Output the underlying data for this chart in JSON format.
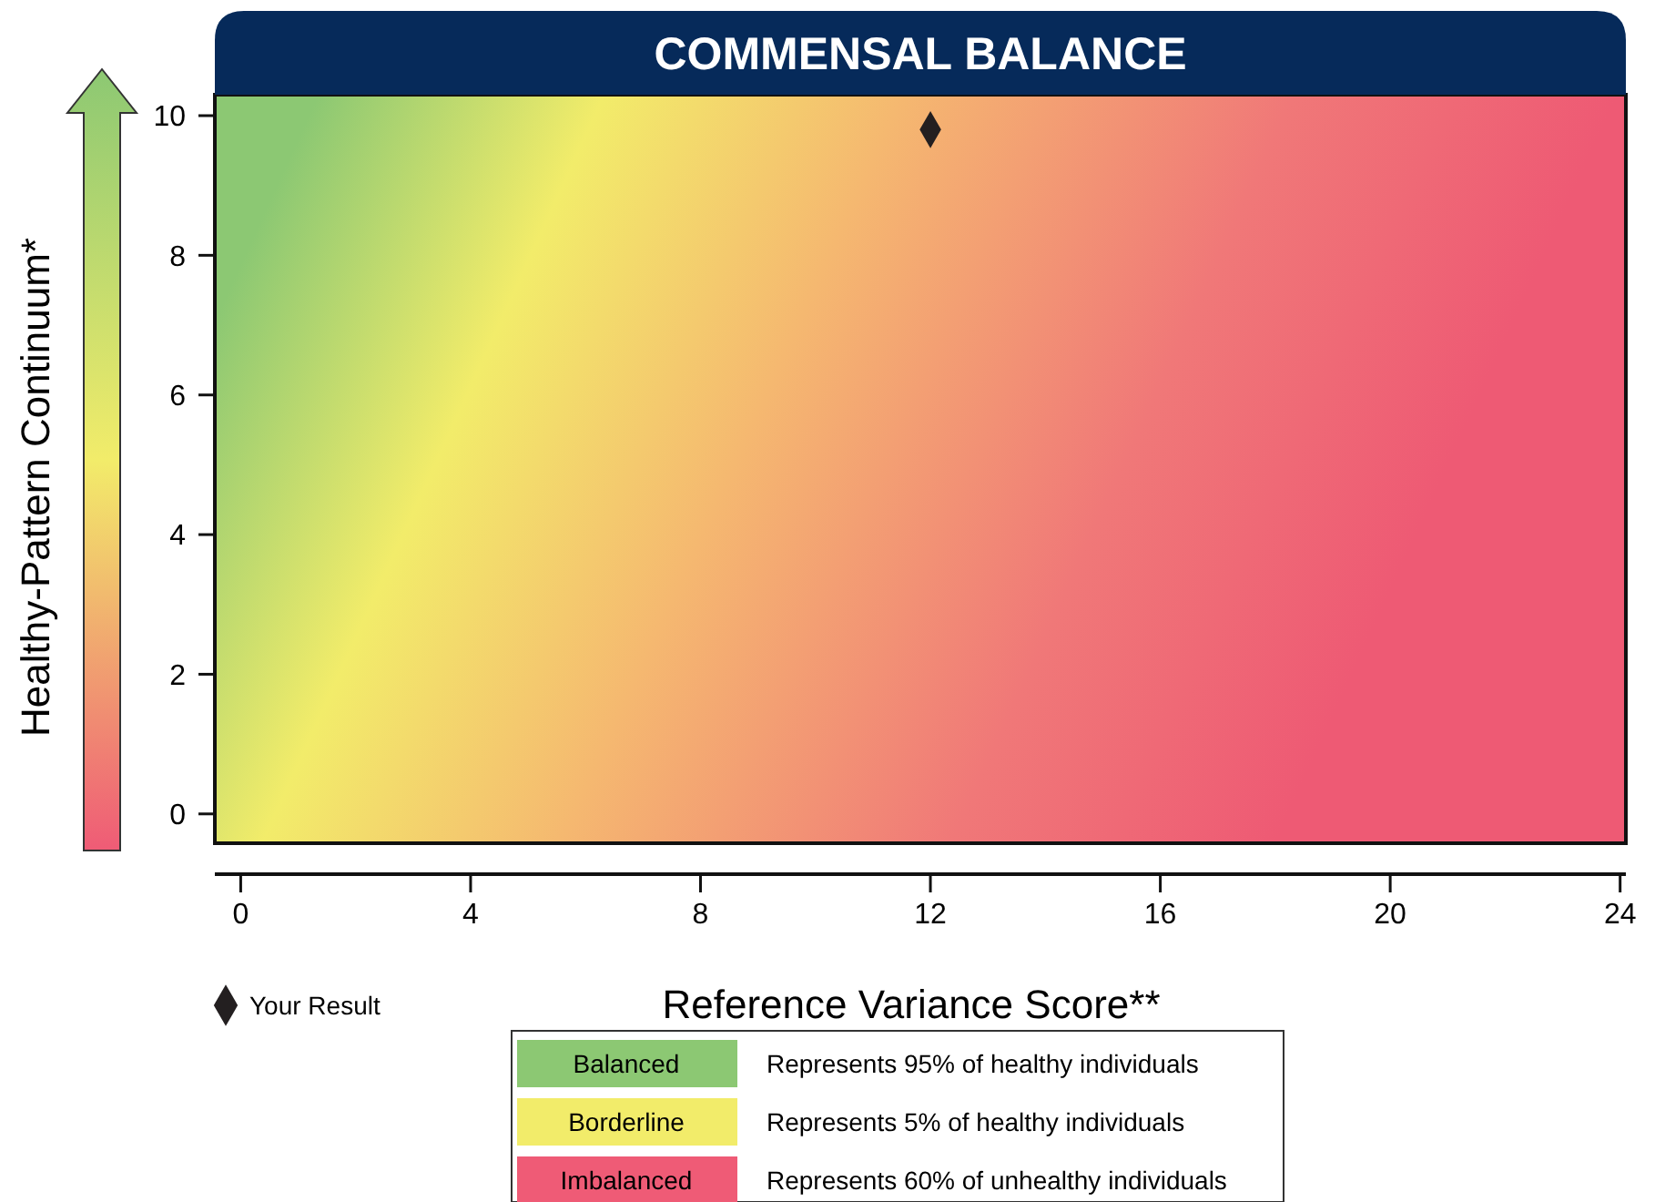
{
  "chart_data": {
    "type": "scatter",
    "title": "COMMENSAL BALANCE",
    "xlabel": "Reference Variance Score**",
    "ylabel": "Healthy-Pattern Continuum*",
    "xlim": [
      -0.45,
      24.1
    ],
    "ylim": [
      -0.42,
      10.3
    ],
    "xticks": [
      0,
      4,
      8,
      12,
      16,
      20,
      24
    ],
    "yticks": [
      0,
      2,
      4,
      6,
      8,
      10
    ],
    "legend": "bottom left",
    "marker": "diamond",
    "series": [
      {
        "name": "Your Result",
        "color": "#231f20",
        "x": [
          12
        ],
        "values": [
          9.8
        ]
      }
    ],
    "annotations": [
      "Balanced",
      "Represents 95% of healthy individuals",
      "Borderline",
      "Represents 5% of healthy individuals",
      "Imbalanced",
      "Represents 60% of unhealthy individuals"
    ]
  }
}
